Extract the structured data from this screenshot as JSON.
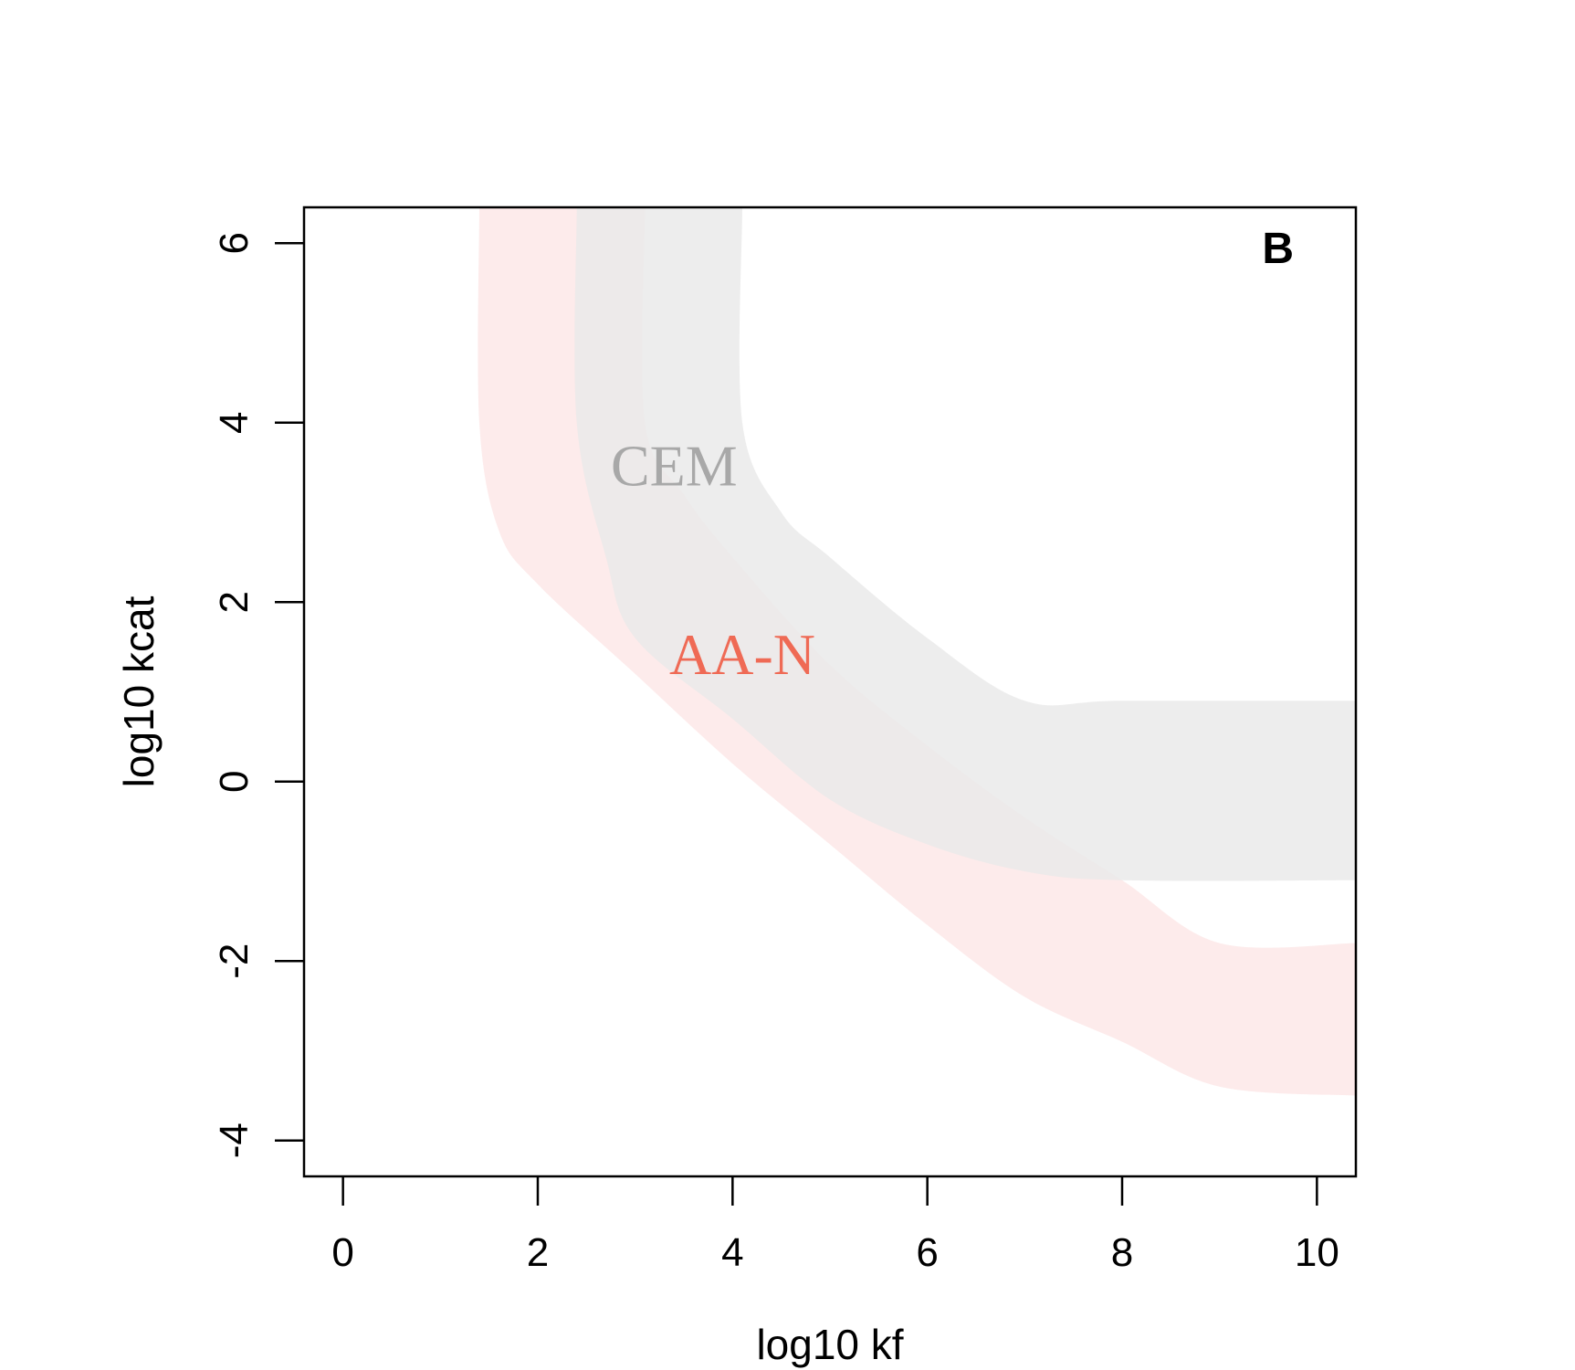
{
  "chart_data": {
    "type": "area",
    "panel_label": "B",
    "xlabel": "log10 kf",
    "ylabel": "log10 kcat",
    "xlim": [
      -0.4,
      10.4
    ],
    "ylim": [
      -4.4,
      6.4
    ],
    "x_ticks": [
      0,
      2,
      4,
      6,
      8,
      10
    ],
    "y_ticks": [
      -4,
      -2,
      0,
      2,
      4,
      6
    ],
    "x_tick_labels": [
      "0",
      "2",
      "4",
      "6",
      "8",
      "10"
    ],
    "y_tick_labels": [
      "-4",
      "-2",
      "0",
      "2",
      "4",
      "6"
    ],
    "grid": false,
    "legend": "none",
    "series": [
      {
        "name": "AA-N",
        "color": "#fde6e6",
        "label_color": "#ef6a55",
        "label_at": [
          4.1,
          1.2
        ],
        "lower": [
          [
            1.4,
            6.4
          ],
          [
            1.4,
            4.0
          ],
          [
            1.6,
            2.8
          ],
          [
            2.0,
            2.2
          ],
          [
            3.0,
            1.2
          ],
          [
            4.0,
            0.2
          ],
          [
            5.0,
            -0.7
          ],
          [
            6.0,
            -1.6
          ],
          [
            7.0,
            -2.4
          ],
          [
            8.0,
            -2.9
          ],
          [
            9.0,
            -3.4
          ],
          [
            10.4,
            -3.5
          ]
        ],
        "upper": [
          [
            3.1,
            6.4
          ],
          [
            3.1,
            4.0
          ],
          [
            3.5,
            3.2
          ],
          [
            4.0,
            2.5
          ],
          [
            5.0,
            1.3
          ],
          [
            6.0,
            0.4
          ],
          [
            7.0,
            -0.4
          ],
          [
            8.0,
            -1.1
          ],
          [
            9.0,
            -1.8
          ],
          [
            10.4,
            -1.8
          ]
        ]
      },
      {
        "name": "CEM",
        "color": "#e9e9e9",
        "label_color": "#a8a8a8",
        "label_at": [
          3.4,
          3.3
        ],
        "lower": [
          [
            2.4,
            6.4
          ],
          [
            2.4,
            4.0
          ],
          [
            2.7,
            2.5
          ],
          [
            3.0,
            1.6
          ],
          [
            4.0,
            0.7
          ],
          [
            5.0,
            -0.2
          ],
          [
            6.0,
            -0.7
          ],
          [
            7.0,
            -1.0
          ],
          [
            8.0,
            -1.1
          ],
          [
            10.4,
            -1.1
          ]
        ],
        "upper": [
          [
            4.1,
            6.4
          ],
          [
            4.1,
            4.0
          ],
          [
            4.5,
            3.0
          ],
          [
            5.0,
            2.5
          ],
          [
            6.0,
            1.6
          ],
          [
            7.0,
            0.9
          ],
          [
            8.0,
            0.9
          ],
          [
            10.4,
            0.9
          ]
        ]
      }
    ]
  }
}
